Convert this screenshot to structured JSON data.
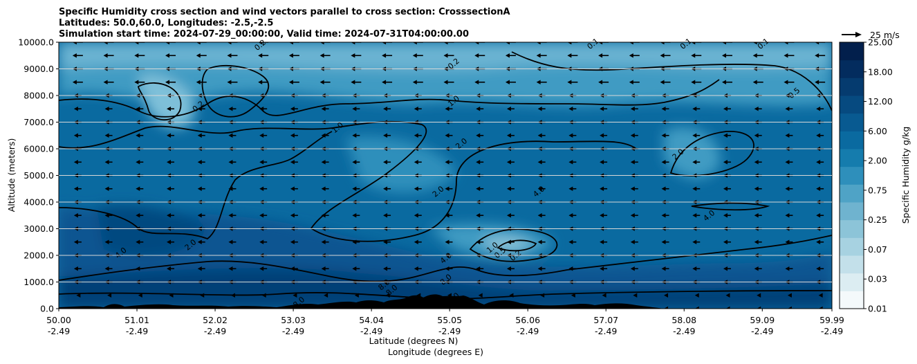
{
  "chart_data": {
    "type": "heatmap",
    "title_lines": [
      "Specific Humidity cross section and wind vectors parallel to cross section: CrosssectionA",
      "Latitudes: 50.0,60.0, Longitudes: -2.5,-2.5",
      "Simulation start time: 2024-07-29_00:00:00, Valid time: 2024-07-31T04:00:00.00"
    ],
    "ylabel": "Altitude (meters)",
    "xlabel_lat": "Latitude (degrees N)",
    "xlabel_lon": "Longitude (degrees E)",
    "ylim": [
      0,
      10000
    ],
    "xlim": [
      50.0,
      59.99
    ],
    "y_ticks": [
      "0.0",
      "1000.0",
      "2000.0",
      "3000.0",
      "4000.0",
      "5000.0",
      "6000.0",
      "7000.0",
      "8000.0",
      "9000.0",
      "10000.0"
    ],
    "x_ticks": [
      {
        "lat": "50.00",
        "lon": "-2.49",
        "value": 50.0
      },
      {
        "lat": "51.01",
        "lon": "-2.49",
        "value": 51.01
      },
      {
        "lat": "52.02",
        "lon": "-2.49",
        "value": 52.02
      },
      {
        "lat": "53.03",
        "lon": "-2.49",
        "value": 53.03
      },
      {
        "lat": "54.04",
        "lon": "-2.49",
        "value": 54.04
      },
      {
        "lat": "55.05",
        "lon": "-2.49",
        "value": 55.05
      },
      {
        "lat": "56.06",
        "lon": "-2.49",
        "value": 56.06
      },
      {
        "lat": "57.07",
        "lon": "-2.49",
        "value": 57.07
      },
      {
        "lat": "58.08",
        "lon": "-2.49",
        "value": 58.08
      },
      {
        "lat": "59.09",
        "lon": "-2.49",
        "value": 59.09
      },
      {
        "lat": "59.99",
        "lon": "-2.49",
        "value": 59.99
      }
    ],
    "colorbar": {
      "label": "Specific Humidity g/kg",
      "ticks": [
        "0.01",
        "0.03",
        "0.07",
        "0.25",
        "0.75",
        "2.00",
        "6.00",
        "12.00",
        "18.00",
        "25.00"
      ],
      "colors": [
        "#f4f9fb",
        "#dcedf2",
        "#c3e0ea",
        "#a7d2e1",
        "#8cc4d8",
        "#6fb3cf",
        "#4fa3c6",
        "#2e8fbb",
        "#157cad",
        "#0a6aa0",
        "#085a91",
        "#064a80",
        "#053b6f",
        "#032c5e",
        "#021f4c"
      ]
    },
    "reference_vector": {
      "label": "25 m/s",
      "speed": 25
    },
    "wind_levels_m": [
      0,
      500,
      1000,
      1500,
      2000,
      2500,
      3000,
      3500,
      4000,
      4500,
      5000,
      5500,
      6000,
      6500,
      7000,
      7500,
      8000,
      8500,
      9000,
      9500,
      10000
    ],
    "contour_labels": [
      {
        "text": "0.2",
        "lat": 51.8,
        "alt": 7600
      },
      {
        "text": "0.2",
        "lat": 52.6,
        "alt": 9900
      },
      {
        "text": "0.2",
        "lat": 55.1,
        "alt": 9200
      },
      {
        "text": "0.1",
        "lat": 56.9,
        "alt": 9950
      },
      {
        "text": "0.1",
        "lat": 58.1,
        "alt": 9950
      },
      {
        "text": "0.1",
        "lat": 59.1,
        "alt": 9950
      },
      {
        "text": "0.5",
        "lat": 59.5,
        "alt": 8100
      },
      {
        "text": "1.0",
        "lat": 55.1,
        "alt": 7800
      },
      {
        "text": "1.0",
        "lat": 53.6,
        "alt": 6800
      },
      {
        "text": "2.0",
        "lat": 55.2,
        "alt": 6200
      },
      {
        "text": "2.0",
        "lat": 58.0,
        "alt": 5800
      },
      {
        "text": "2.0",
        "lat": 54.9,
        "alt": 4400
      },
      {
        "text": "4.0",
        "lat": 56.2,
        "alt": 4400
      },
      {
        "text": "4.0",
        "lat": 58.4,
        "alt": 3500
      },
      {
        "text": "4.0",
        "lat": 50.8,
        "alt": 2100
      },
      {
        "text": "2.0",
        "lat": 51.7,
        "alt": 2400
      },
      {
        "text": "1.0",
        "lat": 55.6,
        "alt": 2300
      },
      {
        "text": "0.5",
        "lat": 55.7,
        "alt": 2100
      },
      {
        "text": "0.2",
        "lat": 55.9,
        "alt": 2000
      },
      {
        "text": "4.0",
        "lat": 55.0,
        "alt": 1900
      },
      {
        "text": "8.0",
        "lat": 55.0,
        "alt": 1100
      },
      {
        "text": "8.0",
        "lat": 54.2,
        "alt": 900
      },
      {
        "text": "8.0",
        "lat": 54.3,
        "alt": 700
      },
      {
        "text": "8.0",
        "lat": 53.1,
        "alt": 250
      },
      {
        "text": "8.0",
        "lat": 55.1,
        "alt": 400
      }
    ]
  }
}
